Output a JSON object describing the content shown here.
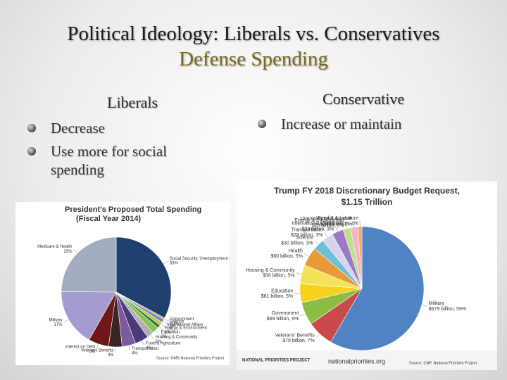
{
  "slide": {
    "title": "Political Ideology: Liberals vs. Conservatives",
    "subtitle": "Defense Spending",
    "left": {
      "heading": "Liberals",
      "bullets": [
        "Decrease",
        "Use more for social spending"
      ]
    },
    "right": {
      "heading": "Conservative",
      "bullets": [
        "Increase or maintain"
      ]
    }
  },
  "chart_data": [
    {
      "type": "pie",
      "title": "President's Proposed Total Spending",
      "subtitle": "(Fiscal Year 2014)",
      "categories": [
        "Social Security, Unemployment & Labor",
        "Government",
        "Science",
        "International Affairs",
        "Energy & Environment",
        "Education",
        "Housing & Community",
        "Food & Agriculture",
        "Transportation",
        "Veterans Benefits",
        "Interest on Debt",
        "Military",
        "Medicare & Health"
      ],
      "values": [
        33,
        0.5,
        1,
        1,
        1,
        2,
        2,
        4,
        4,
        4,
        6,
        17,
        25
      ],
      "value_labels": [
        "33%",
        "<1%",
        "1%",
        "1%",
        "1%",
        "2%",
        "2%",
        "4%",
        "4%",
        "4%",
        "6%",
        "17%",
        "25%"
      ],
      "colors": [
        "#1f3f6e",
        "#e2a04a",
        "#5b8fc9",
        "#c9c24a",
        "#2f7a3a",
        "#8cc05a",
        "#b0b0b0",
        "#4a3a7a",
        "#7a5aa0",
        "#3a2424",
        "#6e1818",
        "#a69bd0",
        "#a3abc0"
      ],
      "source": "Source: OMB National Priorities Project"
    },
    {
      "type": "pie",
      "title": "Trump FY 2018 Discretionary Budget Request,",
      "subtitle": "$1.15 Trillion",
      "categories": [
        "Military",
        "Veterans' Benefits",
        "Government",
        "Education",
        "Housing & Community",
        "Health",
        "Science",
        "Transportation",
        "International Affairs",
        "Energy & Environment",
        "Unemployment & Labor",
        "Food & Agriculture"
      ],
      "values": [
        59,
        7,
        6,
        5,
        5,
        5,
        3,
        3,
        3,
        2,
        2,
        1
      ],
      "value_labels": [
        "$679 billion, 59%",
        "$79 billion, 7%",
        "$69 billion, 6%",
        "$61 billion, 5%",
        "$56 billion, 5%",
        "$60 billion, 5%",
        "$30 billion, 3%",
        "$29 billion, 3%",
        "$29 billion, 3%",
        "$28 billion, 2%",
        "$24 billion, 2%",
        "$11 billion, 1%"
      ],
      "colors": [
        "#4f83c4",
        "#c84a4a",
        "#8bbd45",
        "#f5d21c",
        "#f3e35a",
        "#e89a3a",
        "#6ec0d8",
        "#d9d2ef",
        "#9a7ac8",
        "#bfe08a",
        "#f4b6c0",
        "#f7a35c"
      ],
      "logo": "NATIONAL PRIORITIES PROJECT",
      "url": "nationalpriorities.org",
      "source": "Source: CNP, National Priorities Project"
    }
  ]
}
